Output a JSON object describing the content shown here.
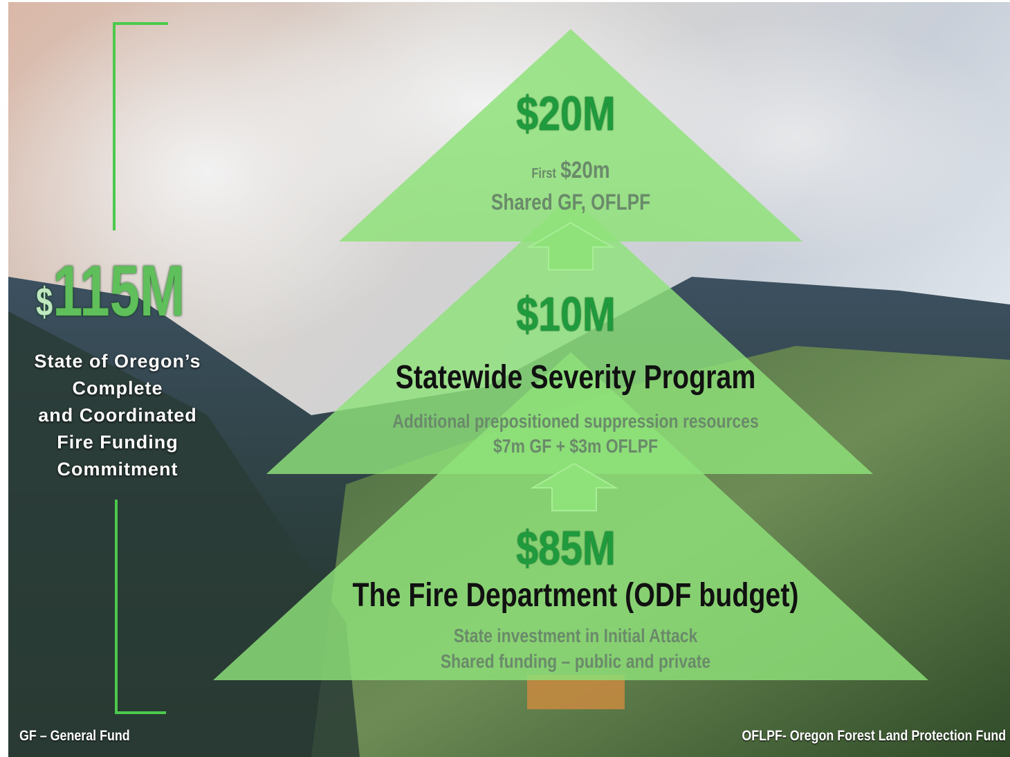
{
  "total": {
    "currency": "$",
    "amount": "115M",
    "description": [
      "State of Oregon’s",
      "Complete",
      "and Coordinated",
      "Fire Funding",
      "Commitment"
    ]
  },
  "tiers": [
    {
      "amount": "$20M",
      "prefix": "First",
      "subamount": "$20m",
      "lines": [
        "Shared GF, OFLPF"
      ]
    },
    {
      "amount": "$10M",
      "title": "Statewide Severity Program",
      "lines": [
        "Additional prepositioned suppression resources",
        "$7m GF + $3m OFLPF"
      ]
    },
    {
      "amount": "$85M",
      "title": "The Fire Department (ODF budget)",
      "lines": [
        "State investment in Initial Attack",
        "Shared funding – public and private"
      ]
    }
  ],
  "footnotes": {
    "left": "GF – General Fund",
    "right": "OFLPF- Oregon Forest Land Protection Fund"
  }
}
